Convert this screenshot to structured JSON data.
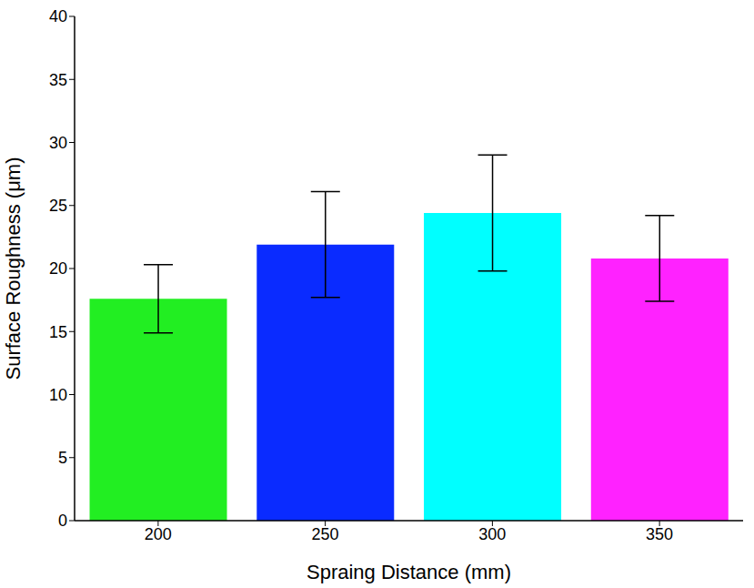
{
  "chart_data": {
    "type": "bar",
    "categories": [
      "200",
      "250",
      "300",
      "350"
    ],
    "values": [
      17.6,
      21.9,
      24.4,
      20.8
    ],
    "errors": [
      2.7,
      4.2,
      4.6,
      3.4
    ],
    "colors": [
      "#22ee22",
      "#0a2bff",
      "#00ffff",
      "#ff22ff"
    ],
    "x_label": "Spraing Distance (mm)",
    "y_label": "Surface Roughness (μm)",
    "ylim": [
      0,
      40
    ],
    "yticks": [
      0,
      5,
      10,
      15,
      20,
      25,
      30,
      35,
      40
    ],
    "grid": false
  }
}
